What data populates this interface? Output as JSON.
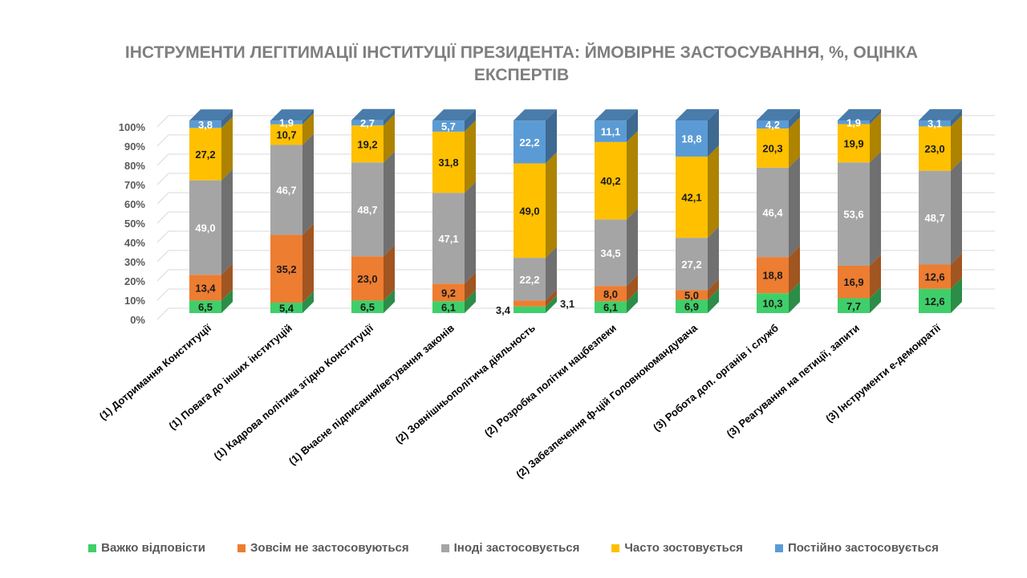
{
  "chart_data": {
    "type": "bar",
    "stacked": true,
    "three_d": true,
    "title": "ІНСТРУМЕНТИ ЛЕГІТИМАЦІЇ ІНСТИТУЦІЇ ПРЕЗИДЕНТА: ЙМОВІРНЕ ЗАСТОСУВАННЯ, %, ОЦІНКА ЕКСПЕРТІВ",
    "ylim": [
      0,
      100
    ],
    "yticks": [
      "0%",
      "10%",
      "20%",
      "30%",
      "40%",
      "50%",
      "60%",
      "70%",
      "80%",
      "90%",
      "100%"
    ],
    "grid": true,
    "legend_position": "bottom",
    "categories": [
      "(1) Дотримання Конституції",
      "(1) Повага до  інших інституцій",
      "(1) Кадрова політика згідно Конституції",
      "(1) Вчасне підписання/ветування законів",
      "(2) Зовнішньополітича діяльность",
      "(2) Розробка політки нацбезпеки",
      "(2) Забезпечення ф-цій Головнокомандувача",
      "(3) Робота доп. органів і служб",
      "(3) Реагування на петиції, запити",
      "(3) Інструменти е-демократії"
    ],
    "series": [
      {
        "name": "Важко відповісти",
        "color": "#3fcf6a",
        "values": [
          6.5,
          5.4,
          6.5,
          6.1,
          3.4,
          6.1,
          6.9,
          10.3,
          7.7,
          12.6
        ]
      },
      {
        "name": "Зовсім не застосовуються",
        "color": "#ed7d31",
        "values": [
          13.4,
          35.2,
          23.0,
          9.2,
          3.1,
          8.0,
          5.0,
          18.8,
          16.9,
          12.6
        ]
      },
      {
        "name": "Іноді застосовується",
        "color": "#a5a5a5",
        "values": [
          49.0,
          46.7,
          48.7,
          47.1,
          22.2,
          34.5,
          27.2,
          46.4,
          53.6,
          48.7
        ]
      },
      {
        "name": "Часто зостовується",
        "color": "#ffc000",
        "values": [
          27.2,
          10.7,
          19.2,
          31.8,
          49.0,
          40.2,
          42.1,
          20.3,
          19.9,
          23.0
        ]
      },
      {
        "name": "Постійно застосовується",
        "color": "#5b9bd5",
        "values": [
          3.8,
          1.9,
          2.7,
          5.7,
          22.2,
          11.1,
          18.8,
          4.2,
          1.9,
          3.1
        ]
      }
    ]
  }
}
